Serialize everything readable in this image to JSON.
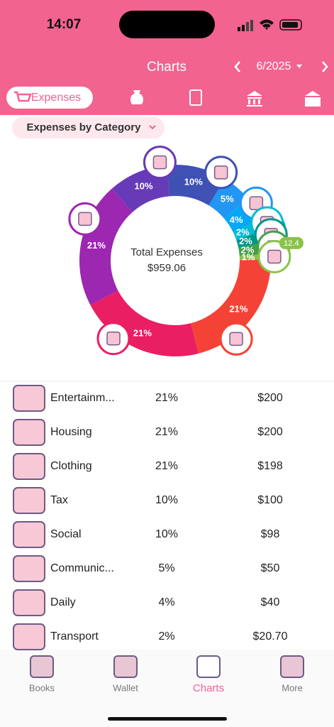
{
  "status": {
    "time": "14:07"
  },
  "header": {
    "title": "Charts",
    "period": "6/2025"
  },
  "tabs": {
    "active": "Expenses"
  },
  "filter": "Expenses by Category",
  "chart_data": {
    "type": "pie",
    "donut": true,
    "center_title": "Total Expenses",
    "center_value": "$959.06",
    "values": [
      10,
      5,
      4,
      2,
      2,
      2,
      1,
      21,
      21,
      21,
      10
    ],
    "value_labels": [
      "10%",
      "5%",
      "4%",
      "2%",
      "2%",
      "2%",
      "1%",
      "21%",
      "21%",
      "21%",
      "10%"
    ],
    "colors": [
      "#3f51b5",
      "#2196f3",
      "#03a9f4",
      "#00bcd4",
      "#009688",
      "#43a047",
      "#8bc34a",
      "#f44336",
      "#e91e63",
      "#9c27b0",
      "#673ab7"
    ],
    "annotations": [
      "12.4"
    ]
  },
  "table": {
    "rows": [
      [
        "Entertainm...",
        "21%",
        "$200"
      ],
      [
        "Housing",
        "21%",
        "$200"
      ],
      [
        "Clothing",
        "21%",
        "$198"
      ],
      [
        "Tax",
        "10%",
        "$100"
      ],
      [
        "Social",
        "10%",
        "$98"
      ],
      [
        "Communic...",
        "5%",
        "$50"
      ],
      [
        "Daily",
        "4%",
        "$40"
      ],
      [
        "Transport",
        "2%",
        "$20.70"
      ]
    ]
  },
  "nav": {
    "items": [
      "Books",
      "Wallet",
      "Charts",
      "More"
    ]
  }
}
